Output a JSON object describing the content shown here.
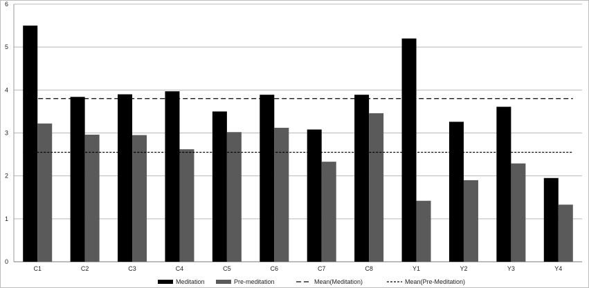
{
  "chart_data": {
    "type": "bar",
    "categories": [
      "C1",
      "C2",
      "C3",
      "C4",
      "C5",
      "C6",
      "C7",
      "C8",
      "Y1",
      "Y2",
      "Y3",
      "Y4"
    ],
    "series": [
      {
        "name": "Meditation",
        "values": [
          5.5,
          3.84,
          3.9,
          3.97,
          3.5,
          3.89,
          3.08,
          3.89,
          5.2,
          3.26,
          3.61,
          1.95
        ],
        "color": "#000000"
      },
      {
        "name": "Pre-meditation",
        "values": [
          3.22,
          2.96,
          2.95,
          2.62,
          3.02,
          3.12,
          2.33,
          3.46,
          1.42,
          1.9,
          2.29,
          1.33
        ],
        "color": "#5a5a5a"
      }
    ],
    "reference_lines": [
      {
        "name": "Mean(Meditation)",
        "value": 3.8,
        "style": "long-dash"
      },
      {
        "name": "Mean(Pre-Meditation)",
        "value": 2.55,
        "style": "short-dash"
      }
    ],
    "ylim": [
      0,
      6
    ],
    "yticks": [
      0,
      1,
      2,
      3,
      4,
      5,
      6
    ],
    "grid": true,
    "legend_position": "bottom",
    "title": "",
    "xlabel": "",
    "ylabel": ""
  }
}
